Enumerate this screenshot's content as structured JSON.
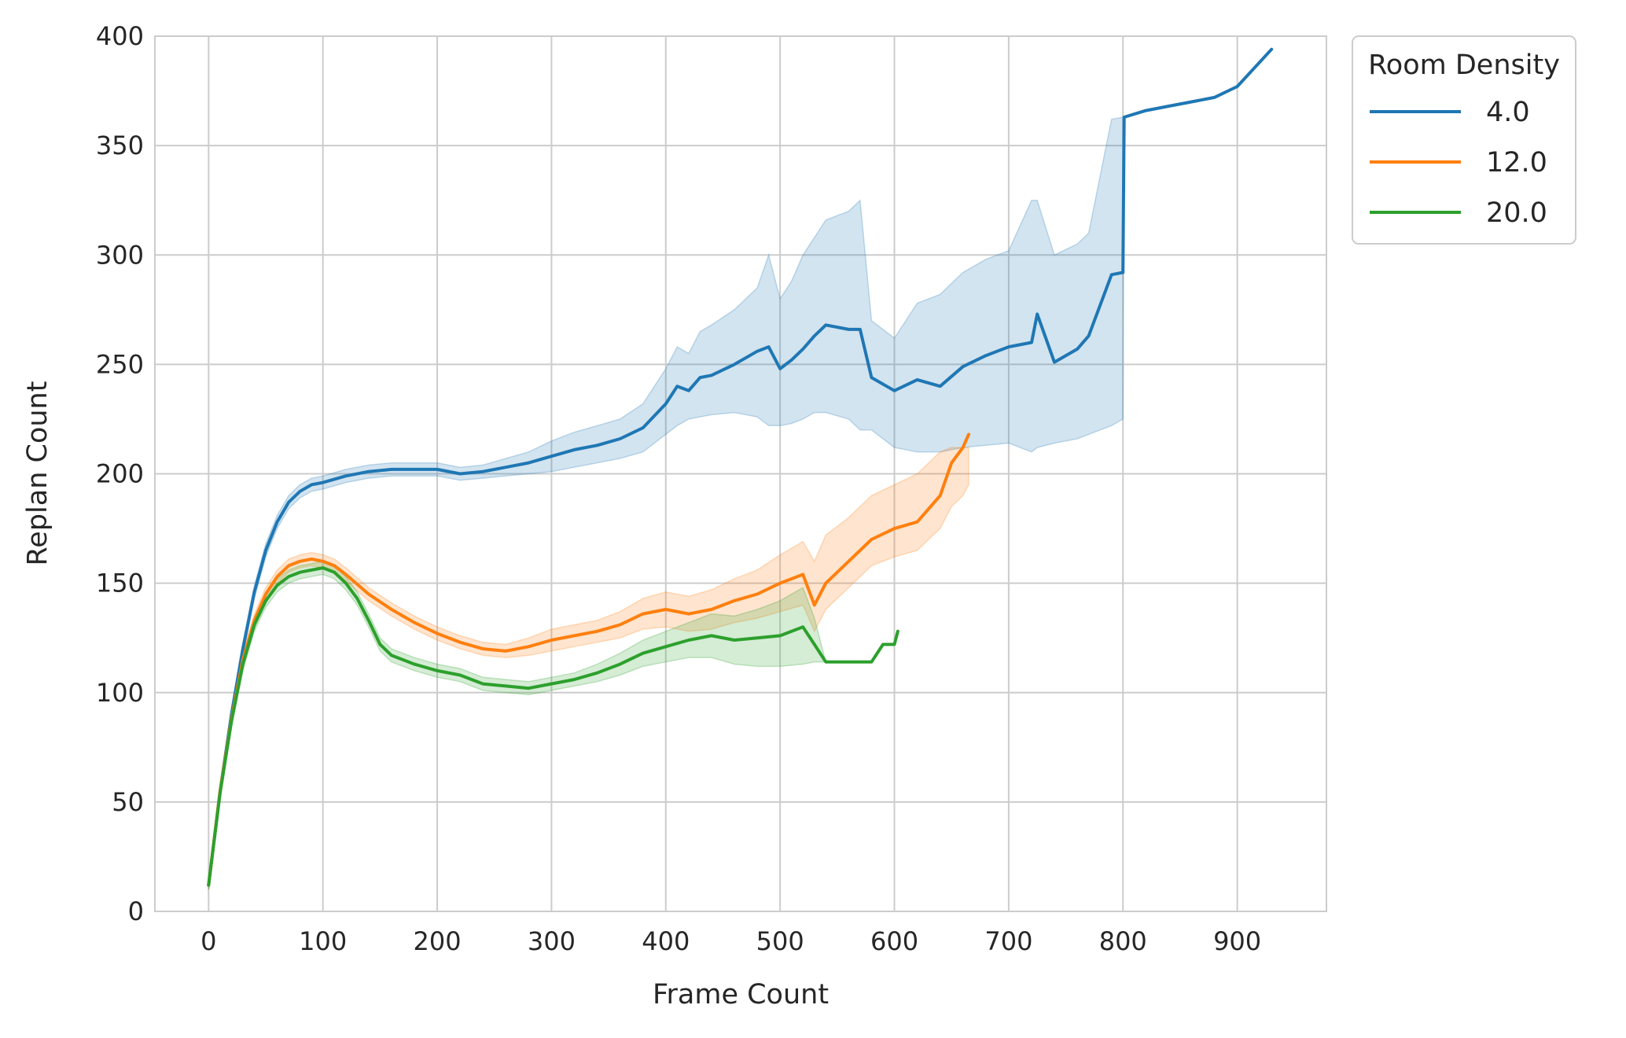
{
  "chart_data": {
    "type": "line",
    "title": "",
    "xlabel": "Frame Count",
    "ylabel": "Replan Count",
    "xlim": [
      -47,
      978
    ],
    "ylim": [
      0,
      400
    ],
    "xticks": [
      0,
      100,
      200,
      300,
      400,
      500,
      600,
      700,
      800,
      900
    ],
    "yticks": [
      0,
      50,
      100,
      150,
      200,
      250,
      300,
      350,
      400
    ],
    "grid": true,
    "legend": {
      "title": "Room Density",
      "placement": "outside-top-right"
    },
    "series": [
      {
        "name": "4.0",
        "color": "#1f77b4",
        "x": [
          0,
          10,
          20,
          30,
          40,
          50,
          60,
          70,
          80,
          90,
          100,
          120,
          140,
          160,
          180,
          200,
          220,
          240,
          260,
          280,
          300,
          320,
          340,
          360,
          380,
          400,
          410,
          420,
          430,
          440,
          460,
          480,
          490,
          500,
          510,
          520,
          530,
          540,
          560,
          570,
          580,
          600,
          620,
          640,
          660,
          680,
          700,
          720,
          725,
          740,
          760,
          770,
          790,
          800,
          801,
          820,
          840,
          860,
          880,
          900,
          930
        ],
        "y": [
          12,
          55,
          90,
          120,
          146,
          165,
          178,
          187,
          192,
          195,
          196,
          199,
          201,
          202,
          202,
          202,
          200,
          201,
          203,
          205,
          208,
          211,
          213,
          216,
          221,
          232,
          240,
          238,
          244,
          245,
          250,
          256,
          258,
          248,
          252,
          257,
          263,
          268,
          266,
          266,
          244,
          238,
          243,
          240,
          249,
          254,
          258,
          260,
          273,
          251,
          257,
          263,
          291,
          292,
          363,
          366,
          368,
          370,
          372,
          377,
          394
        ],
        "ci_lower": [
          10,
          53,
          87,
          117,
          143,
          162,
          175,
          184,
          189,
          192,
          193,
          196,
          198,
          199,
          199,
          199,
          197,
          198,
          199,
          200,
          201,
          203,
          205,
          207,
          210,
          218,
          222,
          225,
          226,
          227,
          228,
          226,
          222,
          222,
          223,
          225,
          228,
          228,
          225,
          220,
          220,
          212,
          210,
          210,
          212,
          213,
          214,
          210,
          212,
          214,
          216,
          218,
          222,
          225,
          363,
          366,
          368,
          370,
          372,
          377,
          394
        ],
        "ci_upper": [
          14,
          57,
          93,
          123,
          149,
          168,
          181,
          190,
          195,
          198,
          199,
          202,
          204,
          205,
          205,
          205,
          203,
          204,
          207,
          210,
          215,
          219,
          222,
          225,
          232,
          248,
          258,
          255,
          265,
          268,
          275,
          285,
          300,
          280,
          288,
          300,
          308,
          316,
          320,
          325,
          270,
          262,
          278,
          282,
          292,
          298,
          302,
          325,
          325,
          300,
          305,
          310,
          362,
          363,
          363,
          366,
          368,
          370,
          372,
          377,
          394
        ]
      },
      {
        "name": "12.0",
        "color": "#ff7f0e",
        "x": [
          0,
          10,
          20,
          30,
          40,
          50,
          60,
          70,
          80,
          90,
          100,
          110,
          120,
          140,
          160,
          180,
          200,
          220,
          240,
          260,
          280,
          300,
          320,
          340,
          360,
          380,
          400,
          420,
          440,
          460,
          480,
          500,
          520,
          530,
          540,
          560,
          580,
          600,
          620,
          640,
          650,
          660,
          665
        ],
        "y": [
          12,
          55,
          88,
          115,
          133,
          145,
          153,
          158,
          160,
          161,
          160,
          158,
          154,
          145,
          138,
          132,
          127,
          123,
          120,
          119,
          121,
          124,
          126,
          128,
          131,
          136,
          138,
          136,
          138,
          142,
          145,
          150,
          154,
          140,
          150,
          160,
          170,
          175,
          178,
          190,
          205,
          212,
          218
        ],
        "ci_lower": [
          10,
          53,
          85,
          112,
          130,
          142,
          150,
          155,
          157,
          158,
          157,
          155,
          151,
          142,
          135,
          129,
          124,
          120,
          117,
          116,
          117,
          119,
          121,
          123,
          125,
          129,
          130,
          128,
          129,
          132,
          134,
          137,
          140,
          128,
          138,
          148,
          158,
          162,
          165,
          175,
          185,
          190,
          195
        ],
        "ci_upper": [
          14,
          57,
          91,
          118,
          136,
          148,
          156,
          161,
          163,
          164,
          163,
          161,
          157,
          148,
          141,
          135,
          130,
          126,
          123,
          122,
          125,
          129,
          131,
          133,
          137,
          143,
          146,
          144,
          147,
          152,
          156,
          163,
          169,
          160,
          172,
          180,
          190,
          195,
          200,
          210,
          212,
          212,
          212
        ]
      },
      {
        "name": "20.0",
        "color": "#2ca02c",
        "x": [
          0,
          10,
          20,
          30,
          40,
          50,
          60,
          70,
          80,
          90,
          100,
          110,
          120,
          130,
          140,
          150,
          160,
          180,
          200,
          220,
          240,
          260,
          280,
          300,
          320,
          340,
          360,
          380,
          400,
          420,
          440,
          460,
          480,
          500,
          520,
          530,
          540,
          560,
          580,
          590,
          600,
          603
        ],
        "y": [
          12,
          54,
          87,
          113,
          131,
          142,
          149,
          153,
          155,
          156,
          157,
          155,
          150,
          143,
          133,
          122,
          117,
          113,
          110,
          108,
          104,
          103,
          102,
          104,
          106,
          109,
          113,
          118,
          121,
          124,
          126,
          124,
          125,
          126,
          130,
          122,
          114,
          114,
          114,
          122,
          122,
          128
        ],
        "ci_lower": [
          10,
          52,
          84,
          110,
          128,
          139,
          146,
          150,
          152,
          153,
          154,
          152,
          147,
          140,
          130,
          119,
          114,
          110,
          107,
          105,
          101,
          100,
          99,
          101,
          103,
          105,
          108,
          112,
          114,
          116,
          116,
          113,
          112,
          112,
          113,
          114,
          114,
          114,
          114,
          122,
          122,
          128
        ],
        "ci_upper": [
          14,
          56,
          90,
          116,
          134,
          145,
          152,
          156,
          158,
          159,
          160,
          158,
          153,
          146,
          136,
          125,
          120,
          116,
          113,
          111,
          107,
          106,
          105,
          107,
          109,
          113,
          118,
          124,
          128,
          132,
          136,
          135,
          138,
          142,
          148,
          134,
          114,
          114,
          114,
          122,
          122,
          128
        ]
      }
    ]
  }
}
